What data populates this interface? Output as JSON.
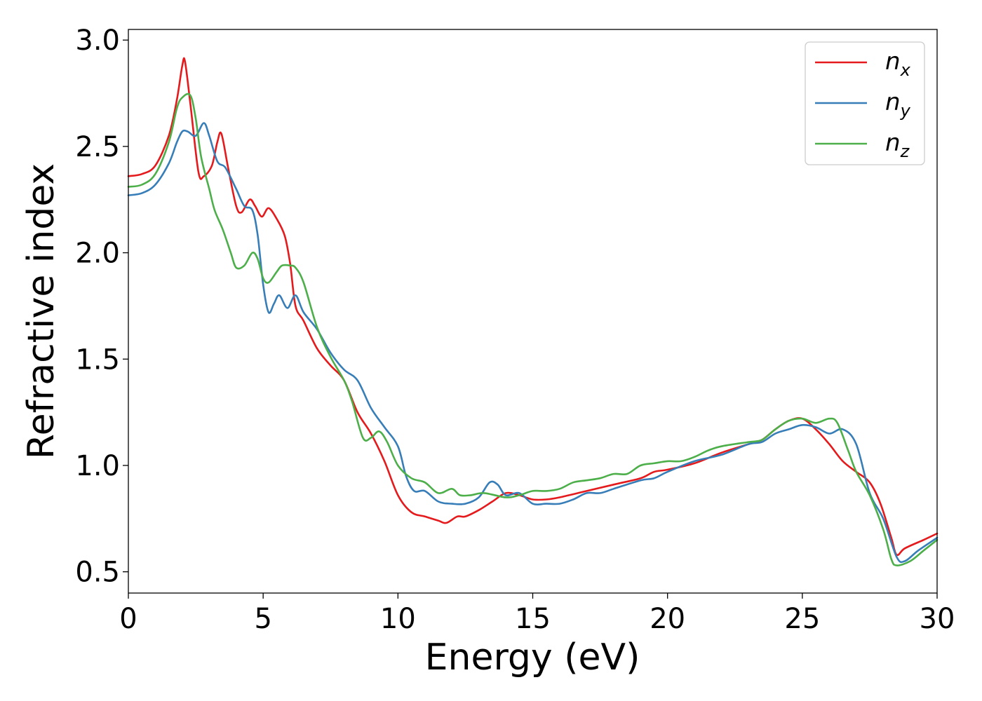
{
  "chart_data": {
    "type": "line",
    "title": "",
    "xlabel": "Energy (eV)",
    "ylabel": "Refractive index",
    "xlim": [
      0,
      30
    ],
    "ylim": [
      0.4,
      3.05
    ],
    "xticks": [
      0,
      5,
      10,
      15,
      20,
      25,
      30
    ],
    "xtick_labels": [
      "0",
      "5",
      "10",
      "15",
      "20",
      "25",
      "30"
    ],
    "yticks": [
      0.5,
      1.0,
      1.5,
      2.0,
      2.5,
      3.0
    ],
    "ytick_labels": [
      "0.5",
      "1.0",
      "1.5",
      "2.0",
      "2.5",
      "3.0"
    ],
    "grid": false,
    "legend_position": "top-right",
    "series": [
      {
        "name": "n",
        "subscript": "x",
        "color": "#e41a1c",
        "points": [
          [
            0,
            2.36
          ],
          [
            0.5,
            2.37
          ],
          [
            1.0,
            2.41
          ],
          [
            1.5,
            2.55
          ],
          [
            1.8,
            2.72
          ],
          [
            2.0,
            2.88
          ],
          [
            2.1,
            2.9
          ],
          [
            2.3,
            2.7
          ],
          [
            2.6,
            2.38
          ],
          [
            2.8,
            2.36
          ],
          [
            3.1,
            2.41
          ],
          [
            3.3,
            2.52
          ],
          [
            3.45,
            2.56
          ],
          [
            3.7,
            2.4
          ],
          [
            4.0,
            2.22
          ],
          [
            4.2,
            2.19
          ],
          [
            4.5,
            2.25
          ],
          [
            4.7,
            2.22
          ],
          [
            4.95,
            2.17
          ],
          [
            5.2,
            2.21
          ],
          [
            5.5,
            2.16
          ],
          [
            5.8,
            2.08
          ],
          [
            6.0,
            1.95
          ],
          [
            6.2,
            1.75
          ],
          [
            6.5,
            1.68
          ],
          [
            7.0,
            1.55
          ],
          [
            7.5,
            1.47
          ],
          [
            8.0,
            1.4
          ],
          [
            8.5,
            1.25
          ],
          [
            9.0,
            1.15
          ],
          [
            9.5,
            1.02
          ],
          [
            10.0,
            0.86
          ],
          [
            10.5,
            0.78
          ],
          [
            11.0,
            0.76
          ],
          [
            11.5,
            0.74
          ],
          [
            11.8,
            0.73
          ],
          [
            12.2,
            0.76
          ],
          [
            12.5,
            0.76
          ],
          [
            13.0,
            0.79
          ],
          [
            13.5,
            0.83
          ],
          [
            14.0,
            0.87
          ],
          [
            14.5,
            0.86
          ],
          [
            15.0,
            0.84
          ],
          [
            15.5,
            0.84
          ],
          [
            16.0,
            0.85
          ],
          [
            17.0,
            0.88
          ],
          [
            18.0,
            0.91
          ],
          [
            19.0,
            0.94
          ],
          [
            19.5,
            0.97
          ],
          [
            20.0,
            0.98
          ],
          [
            21.0,
            1.01
          ],
          [
            22.0,
            1.06
          ],
          [
            23.0,
            1.1
          ],
          [
            23.5,
            1.12
          ],
          [
            24.0,
            1.17
          ],
          [
            24.5,
            1.21
          ],
          [
            25.0,
            1.22
          ],
          [
            25.5,
            1.17
          ],
          [
            26.0,
            1.1
          ],
          [
            26.5,
            1.02
          ],
          [
            27.0,
            0.97
          ],
          [
            27.5,
            0.92
          ],
          [
            27.9,
            0.82
          ],
          [
            28.3,
            0.66
          ],
          [
            28.5,
            0.58
          ],
          [
            28.8,
            0.61
          ],
          [
            29.5,
            0.65
          ],
          [
            30.0,
            0.68
          ]
        ]
      },
      {
        "name": "n",
        "subscript": "y",
        "color": "#377eb8",
        "points": [
          [
            0,
            2.27
          ],
          [
            0.5,
            2.28
          ],
          [
            1.0,
            2.32
          ],
          [
            1.5,
            2.42
          ],
          [
            1.8,
            2.52
          ],
          [
            2.0,
            2.57
          ],
          [
            2.2,
            2.57
          ],
          [
            2.5,
            2.55
          ],
          [
            2.8,
            2.61
          ],
          [
            3.0,
            2.55
          ],
          [
            3.3,
            2.43
          ],
          [
            3.6,
            2.4
          ],
          [
            4.0,
            2.3
          ],
          [
            4.3,
            2.22
          ],
          [
            4.6,
            2.2
          ],
          [
            4.8,
            2.08
          ],
          [
            5.0,
            1.85
          ],
          [
            5.2,
            1.72
          ],
          [
            5.4,
            1.76
          ],
          [
            5.6,
            1.8
          ],
          [
            5.9,
            1.74
          ],
          [
            6.2,
            1.8
          ],
          [
            6.5,
            1.72
          ],
          [
            7.0,
            1.64
          ],
          [
            7.5,
            1.53
          ],
          [
            8.0,
            1.45
          ],
          [
            8.5,
            1.4
          ],
          [
            9.0,
            1.27
          ],
          [
            9.5,
            1.18
          ],
          [
            10.0,
            1.09
          ],
          [
            10.3,
            0.95
          ],
          [
            10.6,
            0.88
          ],
          [
            11.0,
            0.88
          ],
          [
            11.5,
            0.83
          ],
          [
            12.0,
            0.82
          ],
          [
            12.5,
            0.82
          ],
          [
            13.0,
            0.85
          ],
          [
            13.4,
            0.92
          ],
          [
            13.7,
            0.91
          ],
          [
            14.0,
            0.86
          ],
          [
            14.5,
            0.87
          ],
          [
            15.0,
            0.82
          ],
          [
            15.5,
            0.82
          ],
          [
            16.0,
            0.82
          ],
          [
            16.5,
            0.84
          ],
          [
            17.0,
            0.87
          ],
          [
            17.5,
            0.87
          ],
          [
            18.0,
            0.89
          ],
          [
            19.0,
            0.93
          ],
          [
            19.5,
            0.94
          ],
          [
            20.0,
            0.97
          ],
          [
            21.0,
            1.02
          ],
          [
            22.0,
            1.05
          ],
          [
            23.0,
            1.1
          ],
          [
            23.5,
            1.11
          ],
          [
            24.0,
            1.15
          ],
          [
            24.5,
            1.17
          ],
          [
            25.0,
            1.19
          ],
          [
            25.5,
            1.18
          ],
          [
            26.0,
            1.15
          ],
          [
            26.5,
            1.17
          ],
          [
            27.0,
            1.1
          ],
          [
            27.5,
            0.87
          ],
          [
            28.0,
            0.75
          ],
          [
            28.5,
            0.57
          ],
          [
            28.8,
            0.55
          ],
          [
            29.3,
            0.6
          ],
          [
            30.0,
            0.66
          ]
        ]
      },
      {
        "name": "n",
        "subscript": "z",
        "color": "#4daf4a",
        "points": [
          [
            0,
            2.31
          ],
          [
            0.5,
            2.32
          ],
          [
            1.0,
            2.37
          ],
          [
            1.5,
            2.52
          ],
          [
            1.8,
            2.68
          ],
          [
            2.0,
            2.73
          ],
          [
            2.3,
            2.74
          ],
          [
            2.5,
            2.63
          ],
          [
            2.7,
            2.45
          ],
          [
            3.0,
            2.3
          ],
          [
            3.2,
            2.2
          ],
          [
            3.5,
            2.11
          ],
          [
            3.8,
            2.0
          ],
          [
            4.0,
            1.93
          ],
          [
            4.3,
            1.94
          ],
          [
            4.6,
            2.0
          ],
          [
            4.8,
            1.97
          ],
          [
            5.0,
            1.88
          ],
          [
            5.2,
            1.86
          ],
          [
            5.5,
            1.91
          ],
          [
            5.7,
            1.94
          ],
          [
            6.0,
            1.94
          ],
          [
            6.2,
            1.93
          ],
          [
            6.5,
            1.86
          ],
          [
            7.0,
            1.65
          ],
          [
            7.5,
            1.51
          ],
          [
            8.0,
            1.4
          ],
          [
            8.3,
            1.3
          ],
          [
            8.7,
            1.13
          ],
          [
            9.0,
            1.13
          ],
          [
            9.3,
            1.16
          ],
          [
            9.6,
            1.11
          ],
          [
            10.0,
            1.0
          ],
          [
            10.5,
            0.94
          ],
          [
            11.0,
            0.92
          ],
          [
            11.5,
            0.87
          ],
          [
            12.0,
            0.89
          ],
          [
            12.3,
            0.86
          ],
          [
            12.7,
            0.86
          ],
          [
            13.2,
            0.87
          ],
          [
            14.0,
            0.85
          ],
          [
            14.5,
            0.86
          ],
          [
            15.0,
            0.88
          ],
          [
            15.5,
            0.88
          ],
          [
            16.0,
            0.89
          ],
          [
            16.5,
            0.92
          ],
          [
            17.0,
            0.93
          ],
          [
            17.5,
            0.94
          ],
          [
            18.0,
            0.96
          ],
          [
            18.5,
            0.96
          ],
          [
            19.0,
            1.0
          ],
          [
            19.5,
            1.01
          ],
          [
            20.0,
            1.02
          ],
          [
            20.5,
            1.02
          ],
          [
            21.0,
            1.04
          ],
          [
            21.5,
            1.07
          ],
          [
            22.0,
            1.09
          ],
          [
            23.0,
            1.11
          ],
          [
            23.5,
            1.12
          ],
          [
            24.0,
            1.17
          ],
          [
            24.5,
            1.21
          ],
          [
            25.0,
            1.22
          ],
          [
            25.5,
            1.2
          ],
          [
            26.0,
            1.22
          ],
          [
            26.3,
            1.2
          ],
          [
            26.7,
            1.07
          ],
          [
            27.0,
            0.97
          ],
          [
            27.5,
            0.86
          ],
          [
            28.0,
            0.7
          ],
          [
            28.3,
            0.56
          ],
          [
            28.5,
            0.53
          ],
          [
            29.0,
            0.55
          ],
          [
            29.5,
            0.6
          ],
          [
            30.0,
            0.65
          ]
        ]
      }
    ]
  }
}
